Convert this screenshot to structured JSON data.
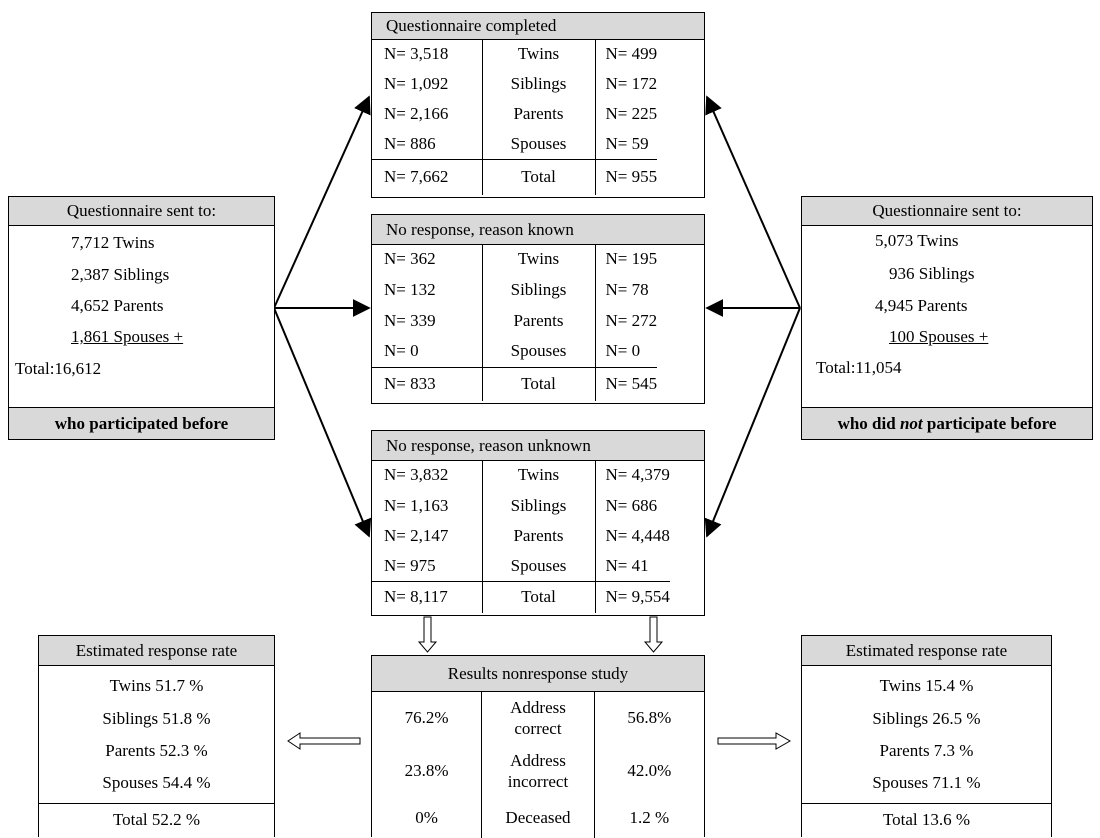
{
  "sent_before": {
    "title": "Questionnaire sent to:",
    "twins": "7,712 Twins",
    "siblings": "2,387 Siblings",
    "parents": "4,652 Parents",
    "spouses": "1,861 Spouses +",
    "total": "Total:16,612",
    "footer": "who participated before"
  },
  "sent_not_before": {
    "title": "Questionnaire sent  to:",
    "twins": "5,073 Twins",
    "siblings": "936 Siblings",
    "parents": "4,945 Parents",
    "spouses": "100 Spouses +",
    "total": "Total:11,054",
    "footer_pre": "who did ",
    "footer_em": "not",
    "footer_post": " participate before"
  },
  "completed": {
    "title": "Questionnaire  completed",
    "rows": [
      {
        "left": "N= 3,518",
        "label": "Twins",
        "right": "N= 499"
      },
      {
        "left": "N= 1,092",
        "label": "Siblings",
        "right": "N= 172"
      },
      {
        "left": "N= 2,166",
        "label": "Parents",
        "right": "N= 225"
      },
      {
        "left": "N= 886",
        "label": "Spouses",
        "right": "N= 59"
      }
    ],
    "total": {
      "left": "N= 7,662",
      "label": "Total",
      "right": "N= 955"
    }
  },
  "known": {
    "title": "No response,  reason known",
    "rows": [
      {
        "left": "N= 362",
        "label": "Twins",
        "right": "N= 195"
      },
      {
        "left": "N= 132",
        "label": "Siblings",
        "right": "N= 78"
      },
      {
        "left": "N= 339",
        "label": "Parents",
        "right": "N= 272"
      },
      {
        "left": "N= 0",
        "label": "Spouses",
        "right": "N= 0"
      }
    ],
    "total": {
      "left": "N= 833",
      "label": "Total",
      "right": "N= 545"
    }
  },
  "unknown": {
    "title": "No response,  reason  unknown",
    "rows": [
      {
        "left": "N= 3,832",
        "label": "Twins",
        "right": "N= 4,379"
      },
      {
        "left": "N= 1,163",
        "label": "Siblings",
        "right": "N= 686"
      },
      {
        "left": "N= 2,147",
        "label": "Parents",
        "right": "N= 4,448"
      },
      {
        "left": "N= 975",
        "label": "Spouses",
        "right": "N= 41"
      }
    ],
    "total": {
      "left": "N= 8,117",
      "label": "Total",
      "right": "N= 9,554"
    }
  },
  "results": {
    "title": "Results  nonresponse  study",
    "rows": [
      {
        "left": "76.2%",
        "label_1": "Address",
        "label_2": "correct",
        "right": "56.8%"
      },
      {
        "left": "23.8%",
        "label_1": "Address",
        "label_2": "incorrect",
        "right": "42.0%"
      },
      {
        "left": "0%",
        "label_1": "Deceased",
        "label_2": "",
        "right": "1.2 %"
      }
    ]
  },
  "rate_left": {
    "title": "Estimated  response  rate",
    "twins": "Twins 51.7 %",
    "siblings": "Siblings 51.8 %",
    "parents": "Parents  52.3 %",
    "spouses": "Spouses 54.4 %",
    "total": "Total 52.2 %"
  },
  "rate_right": {
    "title": "Estimated  response  rate",
    "twins": "Twins 15.4 %",
    "siblings": "Siblings 26.5 %",
    "parents": "Parents  7.3 %",
    "spouses": "Spouses 71.1 %",
    "total": "Total  13.6 %"
  }
}
